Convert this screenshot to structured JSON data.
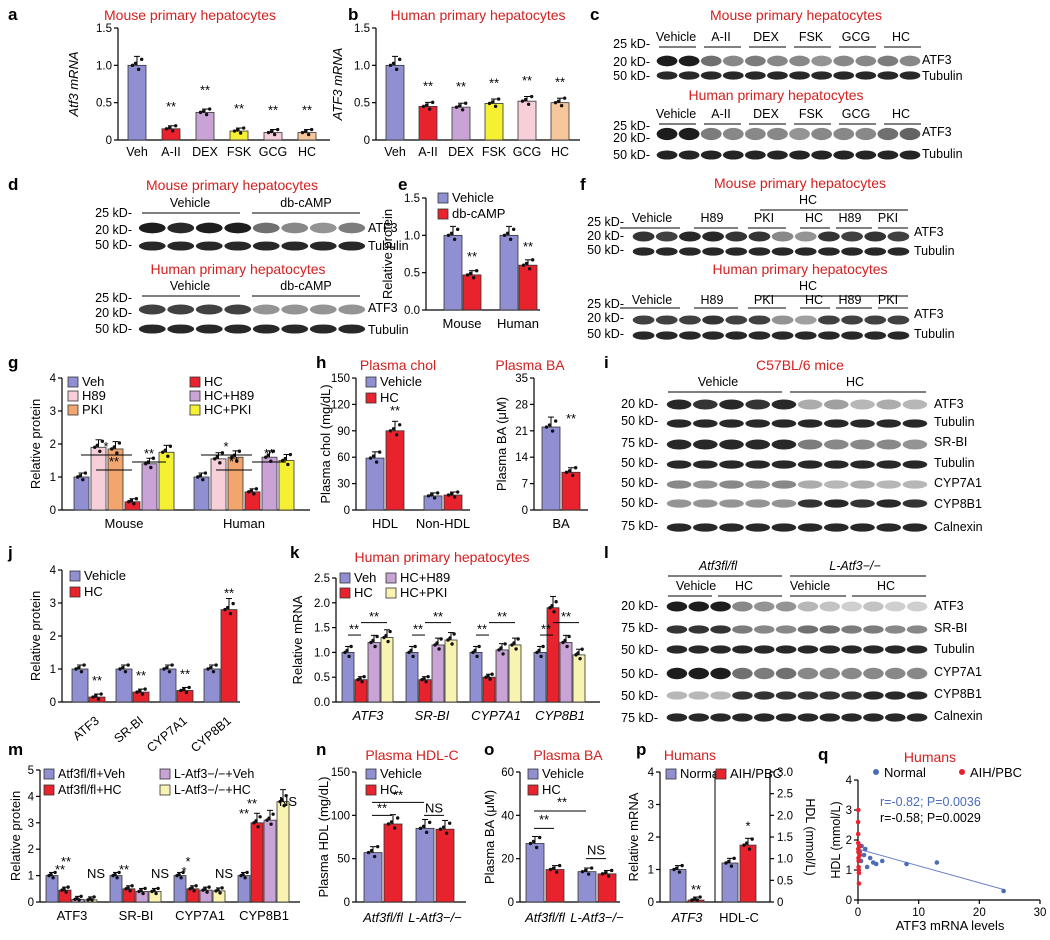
{
  "colors": {
    "veh": "#8f8fd1",
    "red": "#e8232e",
    "purple": "#c9a3d6",
    "orange": "#f2a66e",
    "yellow": "#f5f032",
    "pink": "#f6cfd8",
    "peach": "#f7c69a",
    "lightyellow": "#f8f3b0",
    "title": "#d21f1f",
    "band": "#111111"
  },
  "panel_letters": {
    "a": "a",
    "b": "b",
    "c": "c",
    "d": "d",
    "e": "e",
    "f": "f",
    "g": "g",
    "h": "h",
    "i": "i",
    "j": "j",
    "k": "k",
    "l": "l",
    "m": "m",
    "n": "n",
    "o": "o",
    "p": "p",
    "q": "q"
  },
  "titles": {
    "mouse_hep": "Mouse primary hepatocytes",
    "human_hep": "Human primary hepatocytes",
    "plasma_chol": "Plasma chol",
    "plasma_ba": "Plasma BA",
    "c57": "C57BL/6 mice",
    "plasma_hdlc": "Plasma HDL-C",
    "humans": "Humans"
  },
  "markers": {
    "kd25": "25 kD-",
    "kd20": "20 kD-",
    "kd50": "50 kD-",
    "kd75": "75 kD-",
    "atf3": "ATF3",
    "tubulin": "Tubulin",
    "srbi": "SR-BI",
    "cyp7a1": "CYP7A1",
    "cyp8b1": "CYP8B1",
    "calnexin": "Calnexin"
  },
  "lanes": {
    "vehicle": "Vehicle",
    "aii": "A-II",
    "dex": "DEX",
    "fsk": "FSK",
    "gcg": "GCG",
    "hc": "HC",
    "dbcamp": "db-cAMP",
    "h89": "H89",
    "pki": "PKI",
    "atf3flfl": "Atf3fl/fl",
    "latf3": "L-Atf3−/−"
  },
  "signif": {
    "two": "**",
    "one": "*",
    "ns": "NS"
  },
  "chart_data": [
    {
      "id": "a",
      "type": "bar",
      "title": "Mouse primary hepatocytes",
      "ylabel": "Atf3 mRNA",
      "categories": [
        "Veh",
        "A-II",
        "DEX",
        "FSK",
        "GCG",
        "HC"
      ],
      "values": [
        1.0,
        0.15,
        0.37,
        0.12,
        0.1,
        0.1
      ],
      "ylim": [
        0,
        1.5
      ],
      "yticks": [
        "0",
        "0.5",
        "1.0",
        "1.5"
      ],
      "significance": [
        "",
        "**",
        "**",
        "**",
        "**",
        "**"
      ]
    },
    {
      "id": "b",
      "type": "bar",
      "title": "Human primary hepatocytes",
      "ylabel": "ATF3 mRNA",
      "categories": [
        "Veh",
        "A-II",
        "DEX",
        "FSK",
        "GCG",
        "HC"
      ],
      "values": [
        1.0,
        0.45,
        0.44,
        0.49,
        0.52,
        0.5
      ],
      "ylim": [
        0,
        1.5
      ],
      "yticks": [
        "0",
        "0.5",
        "1.0",
        "1.5"
      ],
      "significance": [
        "",
        "**",
        "**",
        "**",
        "**",
        "**"
      ]
    },
    {
      "id": "e",
      "type": "bar",
      "ylabel": "Relative protein",
      "categories": [
        "Mouse",
        "Human"
      ],
      "series": [
        {
          "name": "Vehicle",
          "values": [
            1.0,
            1.0
          ]
        },
        {
          "name": "db-cAMP",
          "values": [
            0.47,
            0.6
          ]
        }
      ],
      "ylim": [
        0,
        1.5
      ],
      "yticks": [
        "0.0",
        "0.5",
        "1.0",
        "1.5"
      ],
      "significance": [
        "**",
        "**"
      ]
    },
    {
      "id": "g",
      "type": "bar",
      "ylabel": "Relative protein",
      "categories": [
        "Mouse",
        "Human"
      ],
      "series": [
        {
          "name": "Veh",
          "values": [
            1.0,
            1.0
          ]
        },
        {
          "name": "H89",
          "values": [
            1.9,
            1.55
          ]
        },
        {
          "name": "PKI",
          "values": [
            1.85,
            1.6
          ]
        },
        {
          "name": "HC",
          "values": [
            0.25,
            0.55
          ]
        },
        {
          "name": "HC+H89",
          "values": [
            1.4,
            1.6
          ]
        },
        {
          "name": "HC+PKI",
          "values": [
            1.75,
            1.5
          ]
        }
      ],
      "ylim": [
        0,
        4
      ],
      "yticks": [
        "0",
        "1",
        "2",
        "3",
        "4"
      ],
      "significance_labels": [
        "*",
        "**",
        "**",
        "*",
        "**",
        "**"
      ]
    },
    {
      "id": "h_chol",
      "type": "bar",
      "title": "Plasma chol",
      "ylabel": "Plasma chol (mg/dL)",
      "categories": [
        "HDL",
        "Non-HDL"
      ],
      "series": [
        {
          "name": "Vehicle",
          "values": [
            59,
            16
          ]
        },
        {
          "name": "HC",
          "values": [
            90,
            17
          ]
        }
      ],
      "ylim": [
        0,
        150
      ],
      "yticks": [
        "0",
        "30",
        "60",
        "90",
        "120",
        "150"
      ],
      "significance": [
        "**",
        ""
      ]
    },
    {
      "id": "h_ba",
      "type": "bar",
      "title": "Plasma BA",
      "ylabel": "Plasma BA (μM)",
      "categories": [
        "BA"
      ],
      "series": [
        {
          "name": "Vehicle",
          "values": [
            22
          ]
        },
        {
          "name": "HC",
          "values": [
            10
          ]
        }
      ],
      "ylim": [
        0,
        35
      ],
      "yticks": [
        "0",
        "7",
        "14",
        "21",
        "28",
        "35"
      ],
      "significance": [
        "**"
      ]
    },
    {
      "id": "j",
      "type": "bar",
      "ylabel": "Relative protein",
      "categories": [
        "ATF3",
        "SR-BI",
        "CYP7A1",
        "CYP8B1"
      ],
      "series": [
        {
          "name": "Vehicle",
          "values": [
            1.0,
            1.0,
            1.0,
            1.0
          ]
        },
        {
          "name": "HC",
          "values": [
            0.15,
            0.3,
            0.35,
            2.8
          ]
        }
      ],
      "ylim": [
        0,
        4
      ],
      "yticks": [
        "0",
        "1",
        "2",
        "3",
        "4"
      ],
      "significance": [
        "**",
        "**",
        "**",
        "**"
      ]
    },
    {
      "id": "k",
      "type": "bar",
      "title": "Human primary hepatocytes",
      "ylabel": "Relative mRNA",
      "categories": [
        "ATF3",
        "SR-BI",
        "CYP7A1",
        "CYP8B1"
      ],
      "series": [
        {
          "name": "Veh",
          "values": [
            1.0,
            1.0,
            1.0,
            1.0
          ]
        },
        {
          "name": "HC",
          "values": [
            0.45,
            0.45,
            0.5,
            1.9
          ]
        },
        {
          "name": "HC+H89",
          "values": [
            1.2,
            1.15,
            1.05,
            1.2
          ]
        },
        {
          "name": "HC+PKI",
          "values": [
            1.3,
            1.25,
            1.15,
            0.95
          ]
        }
      ],
      "ylim": [
        0,
        2.5
      ],
      "yticks": [
        "0.0",
        "0.5",
        "1.0",
        "1.5",
        "2.0",
        "2.5"
      ]
    },
    {
      "id": "m",
      "type": "bar",
      "ylabel": "Relative protein",
      "categories": [
        "ATF3",
        "SR-BI",
        "CYP7A1",
        "CYP8B1"
      ],
      "series": [
        {
          "name": "Atf3fl/fl+Veh",
          "values": [
            1.0,
            1.0,
            1.0,
            1.0
          ]
        },
        {
          "name": "Atf3fl/fl+HC",
          "values": [
            0.45,
            0.5,
            0.5,
            3.0
          ]
        },
        {
          "name": "L-Atf3−/−+Veh",
          "values": [
            0.1,
            0.4,
            0.45,
            3.1
          ]
        },
        {
          "name": "L-Atf3−/−+HC",
          "values": [
            0.08,
            0.4,
            0.42,
            3.8
          ]
        }
      ],
      "ylim": [
        0,
        5
      ],
      "yticks": [
        "0",
        "1",
        "2",
        "3",
        "4",
        "5"
      ]
    },
    {
      "id": "n",
      "type": "bar",
      "title": "Plasma HDL-C",
      "ylabel": "Plasma HDL (mg/dL)",
      "categories": [
        "Atf3fl/fl",
        "L-Atf3−/−"
      ],
      "series": [
        {
          "name": "Vehicle",
          "values": [
            57,
            85
          ]
        },
        {
          "name": "HC",
          "values": [
            90,
            84
          ]
        }
      ],
      "ylim": [
        0,
        150
      ],
      "yticks": [
        "0",
        "50",
        "100",
        "150"
      ]
    },
    {
      "id": "o",
      "type": "bar",
      "title": "Plasma BA",
      "ylabel": "Plasma BA (μM)",
      "categories": [
        "Atf3fl/fl",
        "L-Atf3−/−"
      ],
      "series": [
        {
          "name": "Vehicle",
          "values": [
            27,
            14
          ]
        },
        {
          "name": "HC",
          "values": [
            15,
            13
          ]
        }
      ],
      "ylim": [
        0,
        60
      ],
      "yticks": [
        "0",
        "20",
        "40",
        "60"
      ]
    },
    {
      "id": "p",
      "type": "bar",
      "title": "Humans",
      "ylabel": "Relative mRNA",
      "y2label": "HDL (mmol/L)",
      "categories": [
        "ATF3",
        "HDL-C"
      ],
      "series": [
        {
          "name": "Normal",
          "values": [
            1.0,
            1.2
          ]
        },
        {
          "name": "AIH/PBC",
          "values": [
            0.06,
            1.75
          ]
        }
      ],
      "ylim": [
        0,
        4
      ],
      "yticks": [
        "0",
        "1",
        "2",
        "3",
        "4"
      ],
      "y2ticks": [
        "0",
        "0.5",
        "1.0",
        "1.5",
        "2.0",
        "2.5",
        "3.0"
      ]
    },
    {
      "id": "q",
      "type": "scatter",
      "title": "Humans",
      "xlabel": "ATF3 mRNA levels",
      "ylabel": "HDL (mmol/L)",
      "xlim": [
        0,
        30
      ],
      "ylim": [
        0,
        4
      ],
      "xticks": [
        "0",
        "10",
        "20",
        "30"
      ],
      "yticks": [
        "0",
        "1",
        "2",
        "3",
        "4"
      ],
      "series": [
        {
          "name": "Normal",
          "points": [
            [
              0.3,
              1.6
            ],
            [
              0.5,
              1.3
            ],
            [
              0.6,
              1.8
            ],
            [
              1.0,
              1.5
            ],
            [
              1.2,
              1.7
            ],
            [
              1.5,
              1.1
            ],
            [
              2.0,
              1.4
            ],
            [
              2.5,
              1.25
            ],
            [
              3,
              1.2
            ],
            [
              4,
              1.3
            ],
            [
              8,
              1.2
            ],
            [
              13,
              1.25
            ],
            [
              24,
              0.3
            ]
          ]
        },
        {
          "name": "AIH/PBC",
          "points": [
            [
              0.02,
              2.6
            ],
            [
              0.03,
              2.2
            ],
            [
              0.05,
              1.9
            ],
            [
              0.05,
              1.7
            ],
            [
              0.07,
              1.6
            ],
            [
              0.08,
              1.4
            ],
            [
              0.1,
              1.3
            ],
            [
              0.1,
              1.1
            ],
            [
              0.12,
              1.0
            ],
            [
              0.15,
              0.9
            ],
            [
              0.2,
              1.8
            ],
            [
              0.05,
              3.0
            ],
            [
              0.3,
              1.5
            ],
            [
              0.15,
              0.55
            ]
          ]
        }
      ],
      "stats": [
        "r=-0.82; P=0.0036",
        "r=-0.58; P=0.0029"
      ]
    }
  ]
}
